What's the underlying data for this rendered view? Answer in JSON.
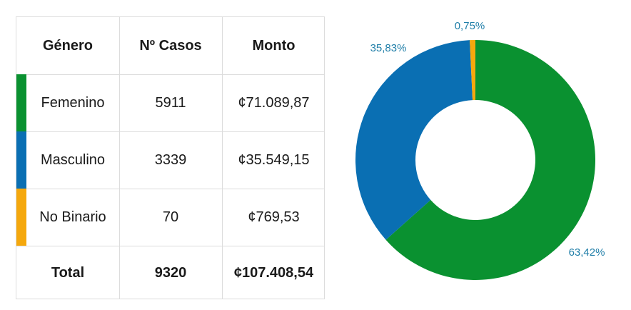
{
  "table": {
    "headers": [
      "Género",
      "Nº Casos",
      "Monto"
    ],
    "rows": [
      {
        "genero": "Femenino",
        "casos": "5911",
        "monto": "¢71.089,87",
        "color": "#0a9130"
      },
      {
        "genero": "Masculino",
        "casos": "3339",
        "monto": "¢35.549,15",
        "color": "#0a6fb3"
      },
      {
        "genero": "No Binario",
        "casos": "70",
        "monto": "¢769,53",
        "color": "#f5a80d"
      }
    ],
    "total": {
      "label": "Total",
      "casos": "9320",
      "monto": "¢107.408,54"
    }
  },
  "chart_data": {
    "type": "pie",
    "categories": [
      "Femenino",
      "Masculino",
      "No Binario"
    ],
    "values": [
      63.42,
      35.83,
      0.75
    ],
    "labels": [
      "63,42%",
      "35,83%",
      "0,75%"
    ],
    "colors": [
      "#0a9130",
      "#0a6fb3",
      "#f5a80d"
    ],
    "donut": true,
    "title": ""
  }
}
